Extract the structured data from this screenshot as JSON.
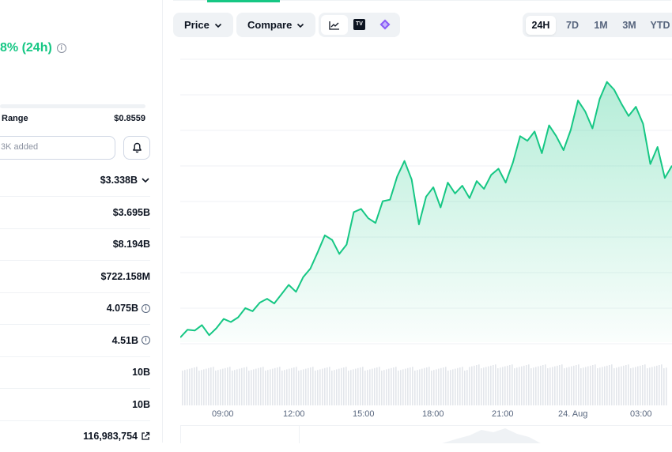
{
  "stats": {
    "price_change": "8% (24h)",
    "range_label": "Range",
    "range_high": "$0.8559",
    "watchlist_placeholder": "3K added",
    "rows": [
      {
        "value": "$3.338B",
        "has_chevron": true,
        "has_info": false
      },
      {
        "value": "$3.695B",
        "has_chevron": false,
        "has_info": false
      },
      {
        "value": "$8.194B",
        "has_chevron": false,
        "has_info": false
      },
      {
        "value": "$722.158M",
        "has_chevron": false,
        "has_info": false
      },
      {
        "value": "4.075B",
        "has_chevron": false,
        "has_info": true
      },
      {
        "value": "4.51B",
        "has_chevron": false,
        "has_info": true
      },
      {
        "value": "10B",
        "has_chevron": false,
        "has_info": false
      },
      {
        "value": "10B",
        "has_chevron": false,
        "has_info": false
      },
      {
        "value": "116,983,754",
        "has_chevron": false,
        "has_info": false,
        "has_external": true
      }
    ]
  },
  "toolbar": {
    "price_label": "Price",
    "compare_label": "Compare",
    "ranges": [
      "24H",
      "7D",
      "1M",
      "3M",
      "YTD"
    ],
    "active_range": "24H",
    "tradingview_icon": "TV"
  },
  "colors": {
    "accent": "#16c784",
    "line": "#16c784",
    "text": "#0d1421",
    "muted": "#58667e"
  },
  "chart_data": {
    "type": "area",
    "x_ticks": [
      "09:00",
      "12:00",
      "15:00",
      "18:00",
      "21:00",
      "24. Aug",
      "03:00"
    ],
    "values": [
      0.6,
      1.6,
      1.5,
      2.2,
      0.9,
      1.8,
      3.0,
      2.6,
      3.2,
      4.4,
      4.0,
      5.1,
      5.6,
      5.0,
      6.2,
      7.4,
      6.5,
      8.4,
      9.5,
      11.6,
      13.8,
      13.2,
      11.4,
      12.6,
      16.8,
      17.2,
      16.0,
      15.4,
      18.2,
      18.4,
      21.4,
      23.4,
      21.0,
      15.2,
      18.8,
      20.0,
      17.4,
      20.6,
      19.2,
      20.2,
      18.6,
      20.8,
      19.8,
      21.6,
      22.4,
      20.6,
      23.2,
      26.6,
      26.0,
      27.2,
      24.4,
      28.0,
      26.6,
      24.8,
      27.4,
      31.2,
      29.8,
      27.6,
      31.4,
      33.6,
      32.6,
      30.8,
      29.2,
      30.4,
      28.2,
      23.0,
      25.2,
      21.2,
      22.8
    ],
    "grid": true,
    "volume": true
  }
}
